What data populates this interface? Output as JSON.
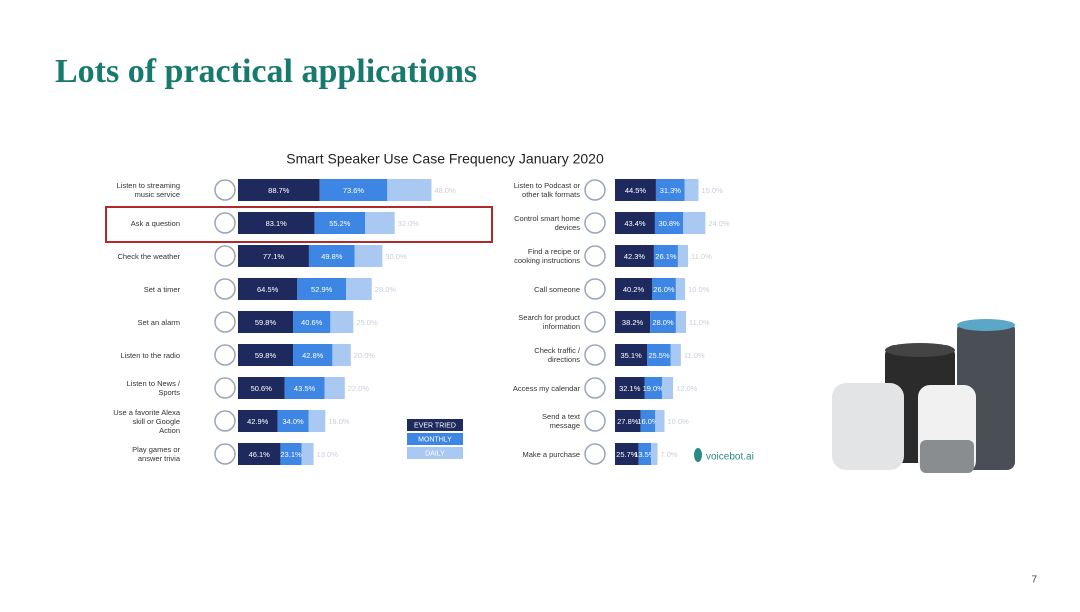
{
  "slide_title": "Lots of practical applications",
  "page_number": "7",
  "logo_text": "voicebot.ai",
  "chart_data": {
    "type": "bar",
    "orientation": "horizontal",
    "stacked": true,
    "title": "Smart Speaker Use Case Frequency January 2020",
    "categories": [
      "Listen to streaming music service",
      "Ask a question",
      "Check the weather",
      "Set a timer",
      "Set an alarm",
      "Listen to the radio",
      "Listen to News / Sports",
      "Use a favorite Alexa skill or Google Action",
      "Play games or answer trivia",
      "Listen to Podcast or other talk formats",
      "Control smart home devices",
      "Find a recipe or cooking instructions",
      "Call someone",
      "Search for product information",
      "Check traffic / directions",
      "Access my calendar",
      "Send a text message",
      "Make a purchase"
    ],
    "series": [
      {
        "name": "EVER TRIED",
        "color": "#1e2a5e",
        "values": [
          88.7,
          83.1,
          77.1,
          64.5,
          59.8,
          59.8,
          50.6,
          42.9,
          46.1,
          44.5,
          43.4,
          42.3,
          40.2,
          38.2,
          35.1,
          32.1,
          27.8,
          25.7
        ],
        "value_labels": [
          "88.7%",
          "83.1%",
          "77.1%",
          "64.5%",
          "59.8%",
          "59.8%",
          "50.6%",
          "42.9%",
          "46.1%",
          "44.5%",
          "43.4%",
          "42.3%",
          "40.2%",
          "38.2%",
          "35.1%",
          "32.1%",
          "27.8%",
          "25.7%"
        ]
      },
      {
        "name": "MONTHLY",
        "color": "#3d86e3",
        "values": [
          73.6,
          55.2,
          49.8,
          52.9,
          40.6,
          42.8,
          43.5,
          34.0,
          23.1,
          31.3,
          30.8,
          26.1,
          26.0,
          28.0,
          25.5,
          19.0,
          16.0,
          13.5
        ],
        "value_labels": [
          "73.6%",
          "55.2%",
          "49.8%",
          "52.9%",
          "40.6%",
          "42.8%",
          "43.5%",
          "34.0%",
          "23.1%",
          "31.3%",
          "30.8%",
          "26.1%",
          "26.0%",
          "28.0%",
          "25.5%",
          "19.0%",
          "16.0%",
          "13.5%"
        ]
      },
      {
        "name": "DAILY",
        "color": "#aac9f2",
        "values": [
          48.0,
          32.0,
          30.0,
          28.0,
          25.0,
          20.0,
          22.0,
          18.0,
          13.0,
          15.0,
          24.0,
          11.0,
          10.0,
          11.0,
          11.0,
          12.0,
          10.0,
          7.0
        ],
        "value_labels": [
          "48.0%",
          "32.0%",
          "30.0%",
          "28.0%",
          "25.0%",
          "20.0%",
          "22.0%",
          "18.0%",
          "13.0%",
          "15.0%",
          "24.0%",
          "11.0%",
          "10.0%",
          "11.0%",
          "11.0%",
          "12.0%",
          "10.0%",
          "7.0%"
        ]
      }
    ]
  }
}
